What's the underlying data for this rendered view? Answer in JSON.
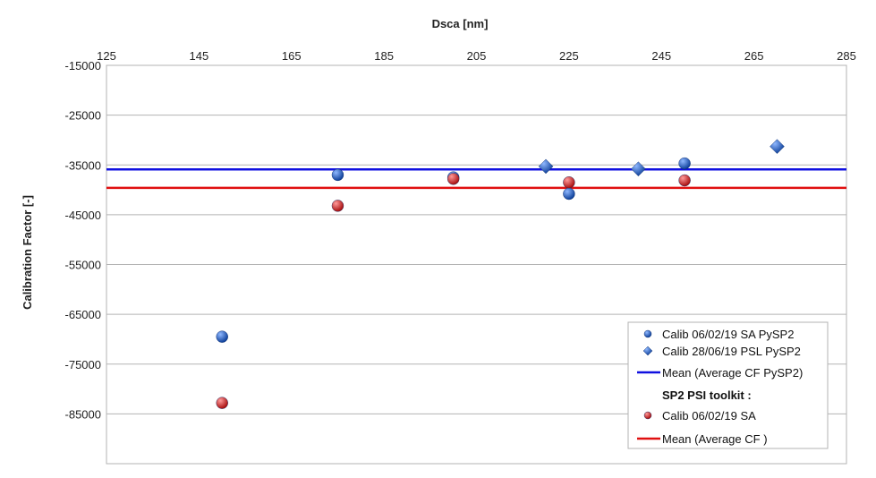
{
  "chart_data": {
    "type": "scatter",
    "xlabel": "Dsca [nm]",
    "ylabel": "Calibration Factor [-]",
    "xlim": [
      125,
      285
    ],
    "ylim": [
      -95000,
      -15000
    ],
    "x_ticks": [
      125,
      145,
      165,
      185,
      205,
      225,
      245,
      265,
      285
    ],
    "y_ticks": [
      -15000,
      -25000,
      -35000,
      -45000,
      -55000,
      -65000,
      -75000,
      -85000
    ],
    "x_axis_position": "top",
    "grid": "horizontal",
    "legend_position": "bottom-right",
    "series": [
      {
        "name": "Calib 06/02/19 SA  PySP2",
        "marker": "sphere",
        "color": "#1f5fbf",
        "points": [
          [
            150,
            -69500
          ],
          [
            175,
            -37000
          ],
          [
            200,
            -37500
          ],
          [
            225,
            -40800
          ],
          [
            250,
            -34700
          ]
        ]
      },
      {
        "name": "Calib 28/06/19 PSL PySP2",
        "marker": "diamond",
        "color": "#1f5fbf",
        "points": [
          [
            220,
            -35300
          ],
          [
            240,
            -35800
          ],
          [
            270,
            -31300
          ]
        ]
      },
      {
        "name": "Mean (Average CF PySP2)",
        "type": "hline",
        "color": "#1010e0",
        "y": -35900
      },
      {
        "name": "Calib 06/02/19  SA",
        "marker": "sphere",
        "color": "#d01818",
        "points": [
          [
            150,
            -82800
          ],
          [
            175,
            -43200
          ],
          [
            200,
            -37800
          ],
          [
            225,
            -38500
          ],
          [
            250,
            -38100
          ]
        ]
      },
      {
        "name": "Mean (Average CF )",
        "type": "hline",
        "color": "#e01010",
        "y": -39600
      }
    ],
    "legend_group_header": "SP2 PSI toolkit :"
  }
}
